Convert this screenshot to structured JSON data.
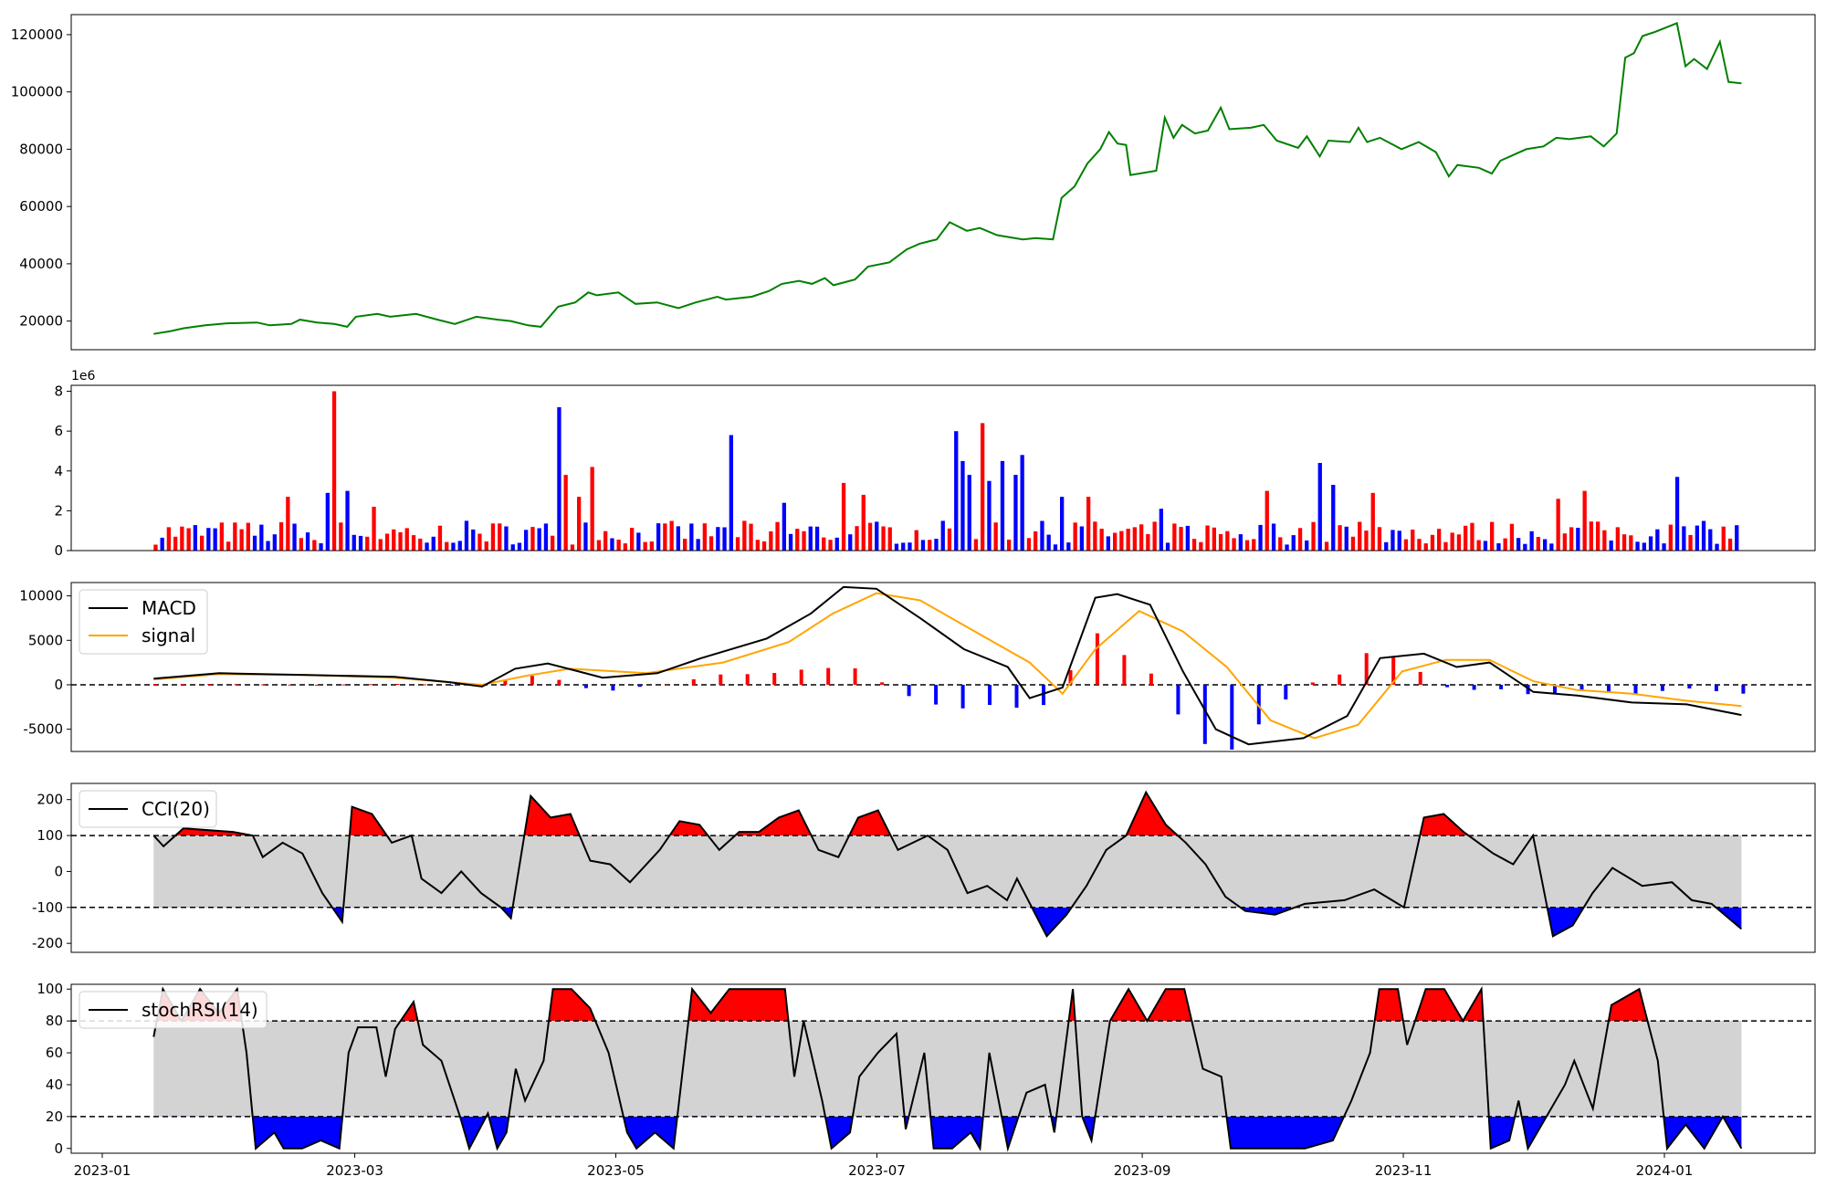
{
  "chart_data": [
    {
      "type": "line",
      "panel": "price",
      "color": "#008000",
      "ylim": [
        10000,
        127000
      ],
      "yticks": [
        "20000",
        "40000",
        "60000",
        "80000",
        "100000",
        "120000"
      ],
      "series": [
        {
          "values": [
            [
              "2023-01-13",
              15500
            ],
            [
              "2023-01-17",
              16500
            ],
            [
              "2023-01-20",
              17500
            ],
            [
              "2023-01-25",
              18500
            ],
            [
              "2023-01-30",
              19200
            ],
            [
              "2023-02-06",
              19500
            ],
            [
              "2023-02-09",
              18500
            ],
            [
              "2023-02-14",
              19000
            ],
            [
              "2023-02-16",
              20500
            ],
            [
              "2023-02-20",
              19500
            ],
            [
              "2023-02-24",
              19000
            ],
            [
              "2023-02-27",
              18000
            ],
            [
              "2023-03-01",
              21500
            ],
            [
              "2023-03-06",
              22500
            ],
            [
              "2023-03-09",
              21500
            ],
            [
              "2023-03-15",
              22500
            ],
            [
              "2023-03-20",
              20500
            ],
            [
              "2023-03-24",
              19000
            ],
            [
              "2023-03-29",
              21500
            ],
            [
              "2023-04-03",
              20500
            ],
            [
              "2023-04-06",
              20000
            ],
            [
              "2023-04-10",
              18500
            ],
            [
              "2023-04-13",
              18000
            ],
            [
              "2023-04-17",
              25000
            ],
            [
              "2023-04-21",
              26500
            ],
            [
              "2023-04-24",
              30000
            ],
            [
              "2023-04-26",
              29000
            ],
            [
              "2023-05-01",
              30000
            ],
            [
              "2023-05-05",
              26000
            ],
            [
              "2023-05-10",
              26500
            ],
            [
              "2023-05-15",
              24500
            ],
            [
              "2023-05-19",
              26500
            ],
            [
              "2023-05-24",
              28500
            ],
            [
              "2023-05-26",
              27500
            ],
            [
              "2023-06-01",
              28500
            ],
            [
              "2023-06-05",
              30500
            ],
            [
              "2023-06-08",
              33000
            ],
            [
              "2023-06-12",
              34000
            ],
            [
              "2023-06-15",
              33000
            ],
            [
              "2023-06-18",
              35000
            ],
            [
              "2023-06-20",
              32500
            ],
            [
              "2023-06-25",
              34500
            ],
            [
              "2023-06-28",
              39000
            ],
            [
              "2023-07-03",
              40500
            ],
            [
              "2023-07-07",
              45000
            ],
            [
              "2023-07-10",
              47000
            ],
            [
              "2023-07-14",
              48500
            ],
            [
              "2023-07-17",
              54500
            ],
            [
              "2023-07-21",
              51500
            ],
            [
              "2023-07-24",
              52500
            ],
            [
              "2023-07-28",
              50000
            ],
            [
              "2023-08-03",
              48500
            ],
            [
              "2023-08-06",
              49000
            ],
            [
              "2023-08-10",
              48500
            ],
            [
              "2023-08-12",
              63000
            ],
            [
              "2023-08-15",
              67000
            ],
            [
              "2023-08-18",
              75000
            ],
            [
              "2023-08-21",
              80000
            ],
            [
              "2023-08-23",
              86000
            ],
            [
              "2023-08-25",
              82000
            ],
            [
              "2023-08-27",
              81500
            ],
            [
              "2023-08-28",
              71000
            ],
            [
              "2023-09-03",
              72500
            ],
            [
              "2023-09-05",
              91000
            ],
            [
              "2023-09-07",
              84000
            ],
            [
              "2023-09-09",
              88500
            ],
            [
              "2023-09-12",
              85500
            ],
            [
              "2023-09-15",
              86500
            ],
            [
              "2023-09-18",
              94500
            ],
            [
              "2023-09-20",
              87000
            ],
            [
              "2023-09-25",
              87500
            ],
            [
              "2023-09-28",
              88500
            ],
            [
              "2023-10-01",
              83000
            ],
            [
              "2023-10-06",
              80500
            ],
            [
              "2023-10-08",
              84500
            ],
            [
              "2023-10-11",
              77500
            ],
            [
              "2023-10-13",
              83000
            ],
            [
              "2023-10-18",
              82500
            ],
            [
              "2023-10-20",
              87500
            ],
            [
              "2023-10-22",
              82500
            ],
            [
              "2023-10-25",
              84000
            ],
            [
              "2023-10-30",
              80000
            ],
            [
              "2023-11-03",
              82500
            ],
            [
              "2023-11-07",
              79000
            ],
            [
              "2023-11-10",
              70500
            ],
            [
              "2023-11-12",
              74500
            ],
            [
              "2023-11-17",
              73500
            ],
            [
              "2023-11-20",
              71500
            ],
            [
              "2023-11-22",
              76000
            ],
            [
              "2023-11-25",
              78000
            ],
            [
              "2023-11-28",
              80000
            ],
            [
              "2023-12-02",
              81000
            ],
            [
              "2023-12-05",
              84000
            ],
            [
              "2023-12-08",
              83500
            ],
            [
              "2023-12-13",
              84500
            ],
            [
              "2023-12-16",
              81000
            ],
            [
              "2023-12-19",
              85500
            ],
            [
              "2023-12-21",
              112000
            ],
            [
              "2023-12-23",
              113500
            ],
            [
              "2023-12-25",
              119500
            ],
            [
              "2023-12-28",
              121000
            ],
            [
              "2024-01-02",
              124000
            ],
            [
              "2024-01-04",
              109000
            ],
            [
              "2024-01-06",
              111500
            ],
            [
              "2024-01-09",
              108000
            ],
            [
              "2024-01-12",
              117500
            ],
            [
              "2024-01-14",
              103500
            ],
            [
              "2024-01-17",
              103000
            ]
          ]
        }
      ]
    },
    {
      "type": "bar",
      "panel": "volume",
      "ylabel_offset": "1e6",
      "ylim": [
        0,
        8.3
      ],
      "yticks": [
        "0",
        "2",
        "4",
        "6",
        "8"
      ],
      "colors": {
        "up": "#ff0000",
        "down": "#0000ff"
      },
      "values": []
    },
    {
      "type": "line",
      "panel": "macd",
      "ylim": [
        -7500,
        11500
      ],
      "yticks": [
        "-5000",
        "0",
        "5000",
        "10000"
      ],
      "legend": [
        "MACD",
        "signal"
      ],
      "colors": {
        "MACD": "#000000",
        "signal": "#ffa500",
        "hist_up": "#ff0000",
        "hist_down": "#0000ff"
      }
    },
    {
      "type": "line",
      "panel": "cci",
      "ylim": [
        -225,
        245
      ],
      "yticks": [
        "-200",
        "-100",
        "0",
        "100",
        "200"
      ],
      "thresholds": [
        100,
        -100
      ],
      "legend": [
        "CCI(20)"
      ],
      "colors": {
        "line": "#000000",
        "band": "#d3d3d3",
        "over": "#ff0000",
        "under": "#0000ff"
      }
    },
    {
      "type": "line",
      "panel": "stochrsi",
      "ylim": [
        -3,
        103
      ],
      "yticks": [
        "0",
        "20",
        "40",
        "60",
        "80",
        "100"
      ],
      "thresholds": [
        80,
        20
      ],
      "legend": [
        "stochRSI(14)"
      ],
      "colors": {
        "line": "#000000",
        "band": "#d3d3d3",
        "over": "#ff0000",
        "under": "#0000ff"
      },
      "xticks": [
        "2023-01",
        "2023-03",
        "2023-05",
        "2023-07",
        "2023-09",
        "2023-11",
        "2024-01"
      ]
    }
  ]
}
